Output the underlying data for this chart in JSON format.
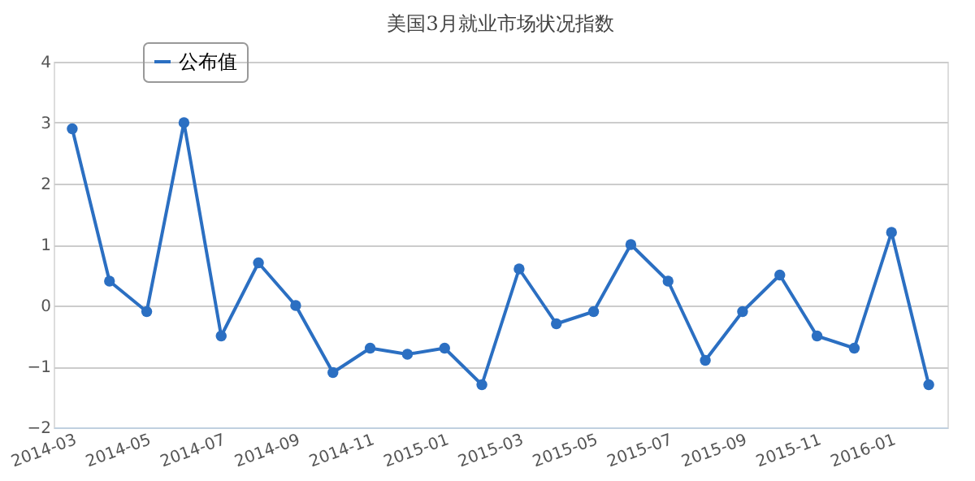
{
  "chart_data": {
    "type": "line",
    "title": "美国3月就业市场状况指数",
    "categories": [
      "2014-03",
      null,
      "2014-05",
      null,
      "2014-07",
      null,
      "2014-09",
      null,
      "2014-11",
      null,
      "2015-01",
      null,
      "2015-03",
      null,
      "2015-05",
      null,
      "2015-07",
      null,
      "2015-09",
      null,
      "2015-11",
      null,
      "2016-01",
      null
    ],
    "series": [
      {
        "name": "公布值",
        "color": "#2b6fc2",
        "values": [
          2.9,
          0.4,
          -0.1,
          3.0,
          -0.5,
          0.7,
          0.0,
          -1.1,
          -0.7,
          -0.8,
          -0.7,
          -1.3,
          0.6,
          -0.3,
          -0.1,
          1.0,
          0.4,
          -0.9,
          -0.1,
          0.5,
          -0.5,
          -0.7,
          1.2,
          -1.3
        ]
      }
    ],
    "ylim": [
      -2,
      4
    ],
    "yticks": [
      -2,
      -1,
      0,
      1,
      2,
      3,
      4
    ],
    "grid": "y",
    "legend": "top left",
    "marker": "circle",
    "line_style": "solid"
  }
}
